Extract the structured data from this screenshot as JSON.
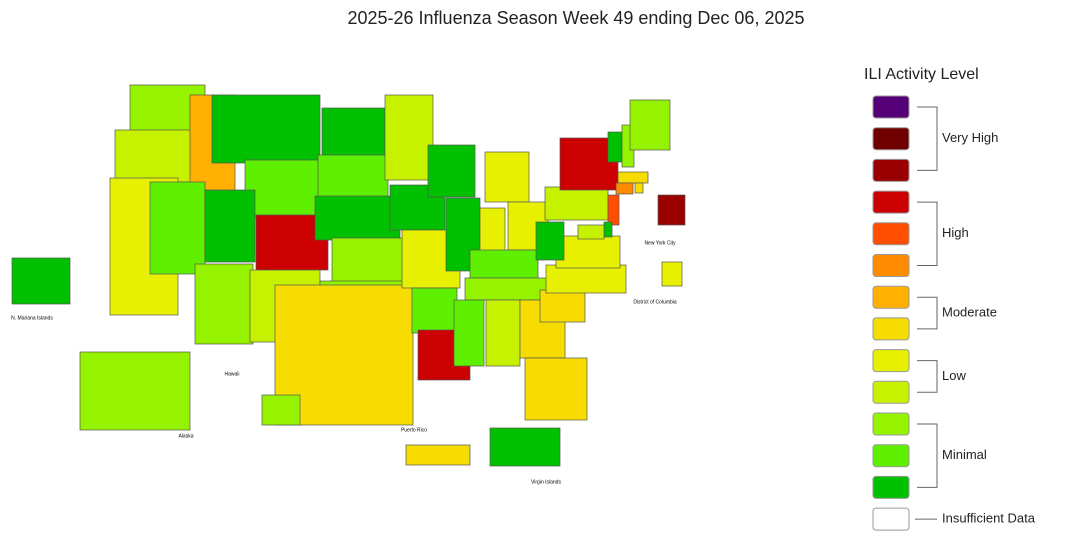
{
  "title": "2025-26 Influenza Season Week 49 ending Dec 06, 2025",
  "map": {
    "region_colors": [
      "#95f300",
      "#c6f200",
      "#e6f000",
      "#ffb000",
      "#5ef000",
      "#00c000",
      "#5ef000",
      "#00c000",
      "#cc0000",
      "#95f300",
      "#c6f200",
      "#00c000",
      "#5ef000",
      "#00c000",
      "#95f300",
      "#95f300",
      "#f6dc00",
      "#c6f200",
      "#00c000",
      "#e6f000",
      "#5ef000",
      "#cc0000",
      "#00c000",
      "#00c000",
      "#e6f000",
      "#e6f000",
      "#e6f000",
      "#5ef000",
      "#95f300",
      "#5ef000",
      "#c6f200",
      "#f6dc00",
      "#f6dc00",
      "#f6dc00",
      "#e6f000",
      "#e6f000",
      "#00c000",
      "#c6f200",
      "#cc0000",
      "#00c000",
      "#95f300",
      "#95f300",
      "#f6dc00",
      "#ff8c00",
      "#f6dc00",
      "#ff4e00",
      "#00c000",
      "#c6f200",
      "#9b0000",
      "#e6f000",
      "#f6dc00",
      "#00c000",
      "#95f300",
      "#95f300",
      "#00c000"
    ],
    "labels": [
      "N. Mariana Islands",
      "Alaska",
      "Hawaii",
      "Puerto Rico",
      "Virgin Islands",
      "New York City",
      "District of Columbia"
    ]
  },
  "legend": {
    "title": "ILI Activity Level",
    "levels": [
      {
        "color": "#560078"
      },
      {
        "color": "#700000"
      },
      {
        "color": "#9b0000"
      },
      {
        "color": "#cc0000"
      },
      {
        "color": "#ff4e00"
      },
      {
        "color": "#ff8c00"
      },
      {
        "color": "#ffb000"
      },
      {
        "color": "#f6dc00"
      },
      {
        "color": "#e6f000"
      },
      {
        "color": "#c6f200"
      },
      {
        "color": "#95f300"
      },
      {
        "color": "#5ef000"
      },
      {
        "color": "#00c000"
      }
    ],
    "groups": [
      "Very High",
      "High",
      "Moderate",
      "Low",
      "Minimal"
    ],
    "insufficient": {
      "label": "Insufficient Data",
      "color": "#ffffff"
    }
  }
}
